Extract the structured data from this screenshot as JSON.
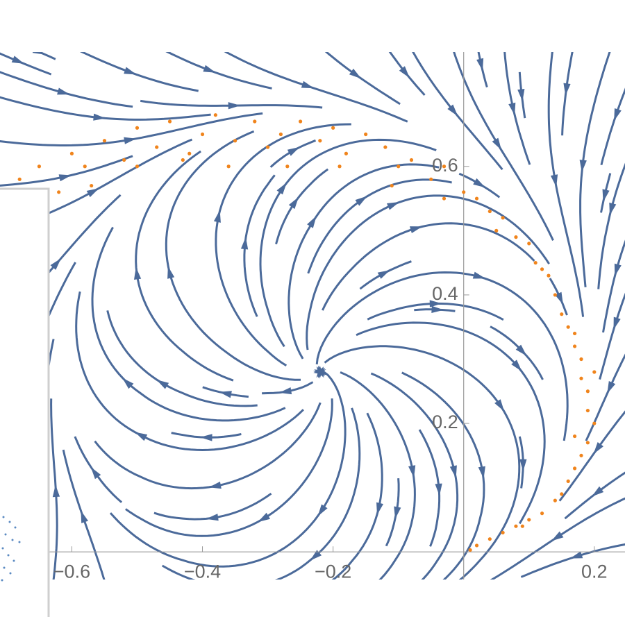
{
  "chart_data": {
    "type": "scatter",
    "xlim": [
      -0.71,
      0.247
    ],
    "ylim": [
      -0.043,
      0.778
    ],
    "xticks": [
      {
        "value": -0.6,
        "label": "−0.6"
      },
      {
        "value": -0.4,
        "label": "−0.4"
      },
      {
        "value": -0.2,
        "label": "−0.2"
      },
      0.2
    ],
    "yticks": [
      0.2,
      0.4,
      0.6
    ],
    "stream_color": "#4b6a9a",
    "series": [
      {
        "color": "#f0841c",
        "x": [
          -0.68,
          -0.65,
          -0.62,
          -0.6,
          -0.58,
          -0.55,
          -0.52,
          -0.5,
          -0.47,
          -0.45,
          -0.42,
          -0.4,
          -0.38,
          -0.35,
          -0.32,
          -0.3,
          -0.28,
          -0.25,
          -0.22,
          -0.2,
          -0.18,
          -0.15,
          -0.12,
          -0.1,
          -0.08,
          -0.05,
          -0.03,
          0,
          0.02,
          0.04,
          0.06,
          0.08,
          0.1,
          0.11,
          0.13,
          0.14,
          0.15,
          0.16,
          0.17,
          0.18,
          0.18,
          0.19,
          0.19,
          0.2,
          0.19,
          0.18,
          0.17,
          0.16,
          0.15,
          0.14,
          0.12,
          0.1,
          0.08,
          0.06,
          0.04,
          0.02,
          0.01,
          -0.64,
          -0.57,
          -0.5,
          -0.43,
          -0.36,
          -0.27,
          -0.19,
          -0.11,
          -0.03,
          0.05,
          0.12,
          0.17,
          0.2,
          0.17,
          0.09
        ],
        "values": [
          0.58,
          0.6,
          0.56,
          0.62,
          0.6,
          0.64,
          0.61,
          0.66,
          0.63,
          0.67,
          0.62,
          0.65,
          0.68,
          0.64,
          0.67,
          0.63,
          0.65,
          0.67,
          0.64,
          0.66,
          0.62,
          0.65,
          0.63,
          0.6,
          0.61,
          0.58,
          0.6,
          0.56,
          0.55,
          0.53,
          0.52,
          0.49,
          0.48,
          0.45,
          0.43,
          0.4,
          0.37,
          0.35,
          0.32,
          0.3,
          0.27,
          0.25,
          0.22,
          0.2,
          0.17,
          0.15,
          0.13,
          0.11,
          0.09,
          0.08,
          0.06,
          0.05,
          0.04,
          0.03,
          0.02,
          0.01,
          0.003,
          0.54,
          0.57,
          0.6,
          0.61,
          0.6,
          0.6,
          0.6,
          0.57,
          0.55,
          0.5,
          0.44,
          0.34,
          0.28,
          0.18,
          0.04
        ]
      }
    ]
  }
}
